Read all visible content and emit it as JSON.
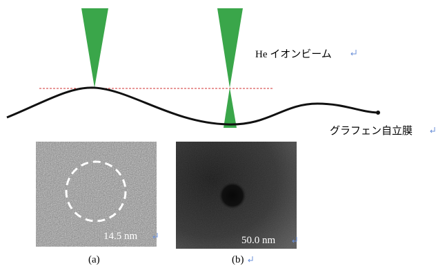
{
  "labels": {
    "beam": "He イオンビーム",
    "membrane": "グラフェン自立膜"
  },
  "images": [
    {
      "scale": "14.5 nm",
      "caption": "(a)"
    },
    {
      "scale": "50.0 nm",
      "caption": "(b)"
    }
  ]
}
